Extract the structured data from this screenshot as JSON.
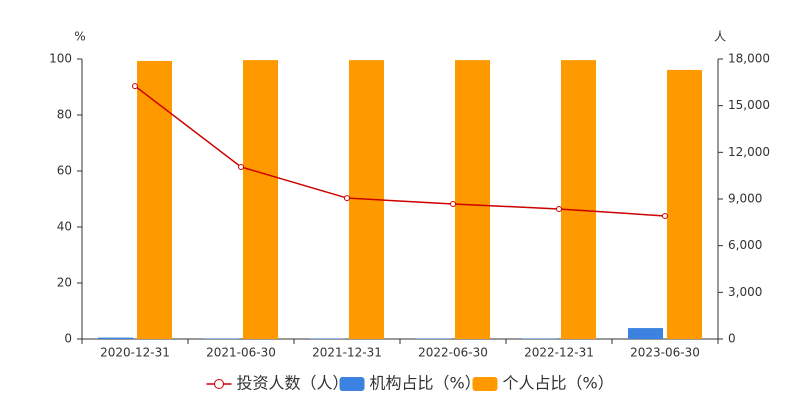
{
  "chart_data": {
    "type": "bar",
    "categories": [
      "2020-12-31",
      "2021-06-30",
      "2021-12-31",
      "2022-06-30",
      "2022-12-31",
      "2023-06-30"
    ],
    "y_unit": "%",
    "y2_unit": "人",
    "series": [
      {
        "name": "投资人数（人）",
        "type": "line",
        "axis": "y2",
        "color": "#cc0000",
        "values": [
          16260,
          11060,
          9060,
          8680,
          8360,
          7910
        ]
      },
      {
        "name": "机构占比（%）",
        "type": "bar",
        "color": "#3c82e0",
        "values": [
          0.5,
          0.2,
          0.2,
          0.2,
          0.2,
          3.9
        ]
      },
      {
        "name": "个人占比（%）",
        "type": "bar",
        "color": "#ff9900",
        "values": [
          99.3,
          99.6,
          99.6,
          99.6,
          99.6,
          96.1
        ]
      }
    ],
    "ylim": [
      0,
      100
    ],
    "yticks": [
      0,
      20,
      40,
      60,
      80,
      100
    ],
    "y2lim": [
      0,
      18000
    ],
    "y2ticks": [
      0,
      {
        "value": 3000,
        "label": "3,000"
      },
      {
        "value": 6000,
        "label": "6,000"
      },
      {
        "value": 9000,
        "label": "9,000"
      },
      {
        "value": 12000,
        "label": "12,000"
      },
      {
        "value": 15000,
        "label": "15,000"
      },
      {
        "value": 18000,
        "label": "18,000"
      }
    ]
  }
}
